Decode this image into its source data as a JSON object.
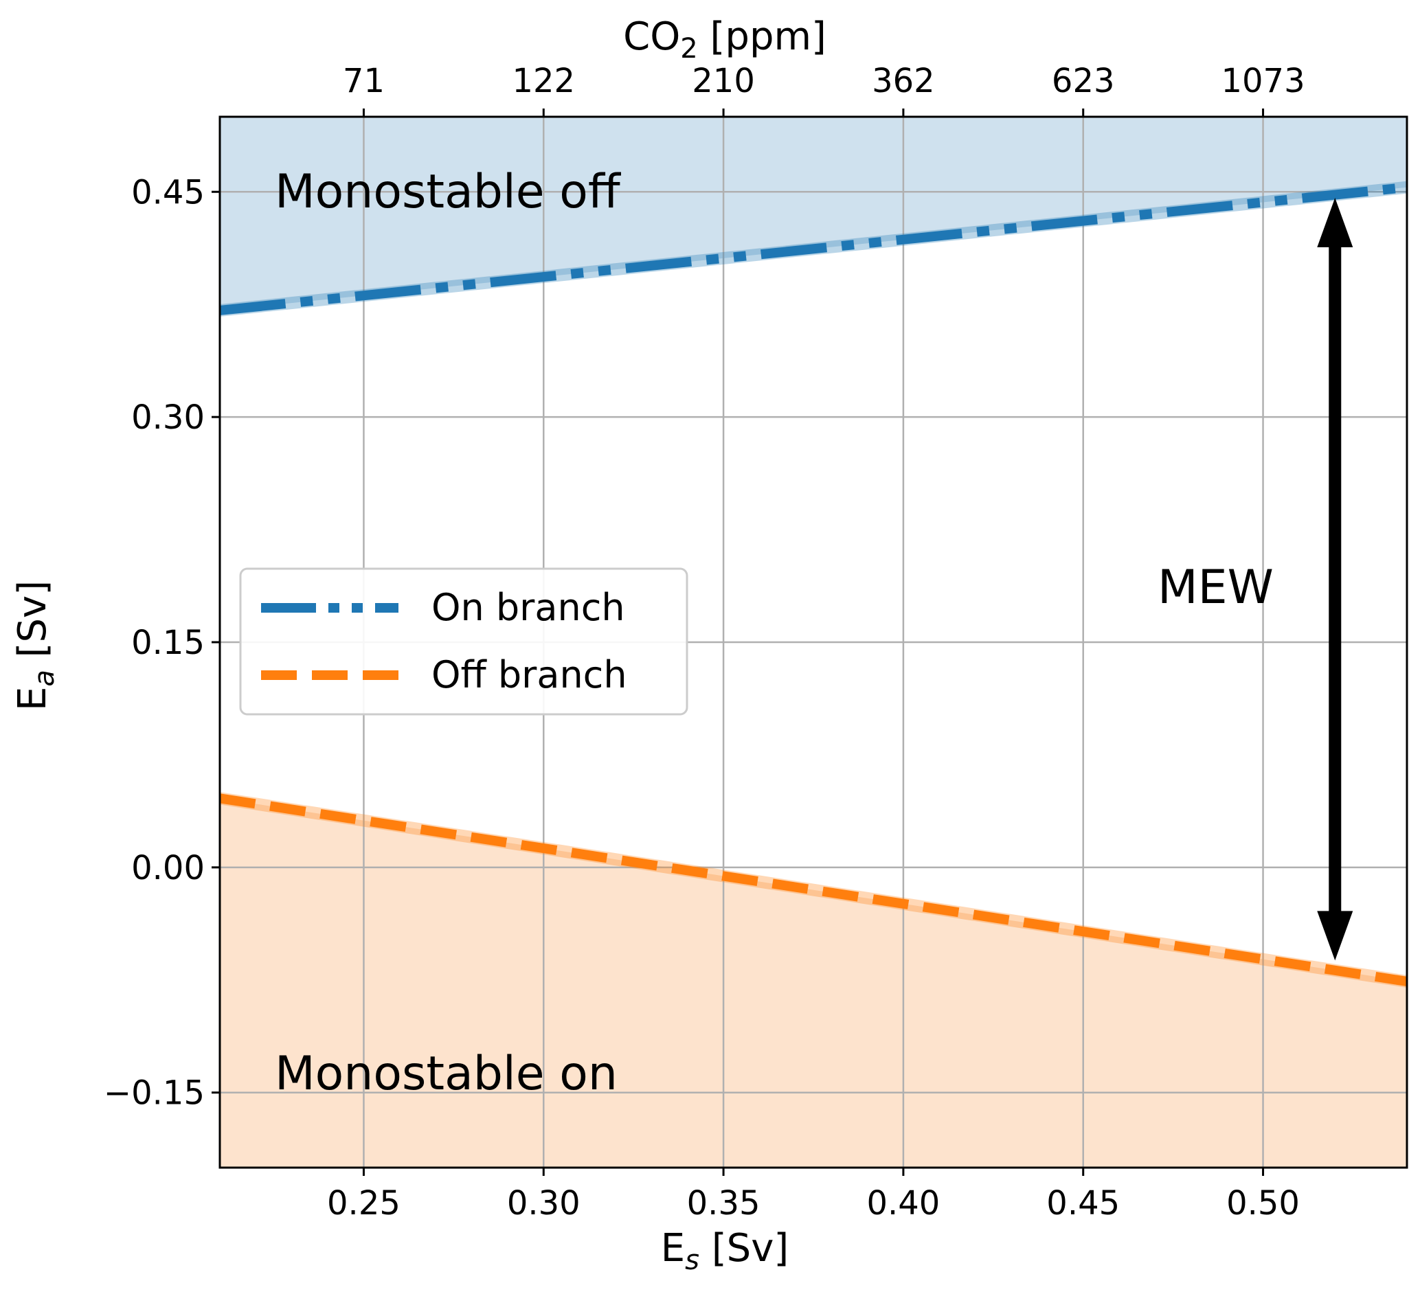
{
  "chart_data": {
    "type": "line",
    "xlabel": {
      "main": "E",
      "sub": "s",
      "unit": " [Sv]"
    },
    "ylabel": {
      "main": "E",
      "sub": "a",
      "unit": " [Sv]"
    },
    "top_xlabel": {
      "main": "CO",
      "sub": "2",
      "unit": " [ppm]"
    },
    "xlim": [
      0.21,
      0.54
    ],
    "ylim": [
      -0.2,
      0.5
    ],
    "xticks": [
      0.25,
      0.3,
      0.35,
      0.4,
      0.45,
      0.5
    ],
    "xtick_labels": [
      "0.25",
      "0.30",
      "0.35",
      "0.40",
      "0.45",
      "0.50"
    ],
    "yticks": [
      -0.15,
      0.0,
      0.15,
      0.3,
      0.45
    ],
    "ytick_labels": [
      "−0.15",
      "0.00",
      "0.15",
      "0.30",
      "0.45"
    ],
    "top_xticks": [
      0.25,
      0.3,
      0.35,
      0.4,
      0.45,
      0.5
    ],
    "top_xtick_labels": [
      "71",
      "122",
      "210",
      "362",
      "623",
      "1073"
    ],
    "grid": true,
    "legend_position": "center-left",
    "colors": {
      "on_branch": "#1f77b4",
      "off_branch": "#ff7f0e",
      "monostable_off_fill": "#cfe1ee",
      "monostable_on_fill": "#fde3cd",
      "arrow": "#000000"
    },
    "series": [
      {
        "name": "On branch",
        "style": "dash-dot",
        "x": [
          0.21,
          0.54
        ],
        "y": [
          0.371,
          0.453
        ]
      },
      {
        "name": "Off branch",
        "style": "dashed",
        "x": [
          0.21,
          0.54
        ],
        "y": [
          0.046,
          -0.076
        ]
      }
    ],
    "regions": [
      {
        "label": "Monostable off",
        "bound": "above On branch"
      },
      {
        "label": "Monostable on",
        "bound": "below Off branch"
      }
    ],
    "annotations": [
      {
        "label": "MEW",
        "type": "double-arrow",
        "x": 0.52,
        "y_from": -0.062,
        "y_to": 0.446
      }
    ]
  }
}
